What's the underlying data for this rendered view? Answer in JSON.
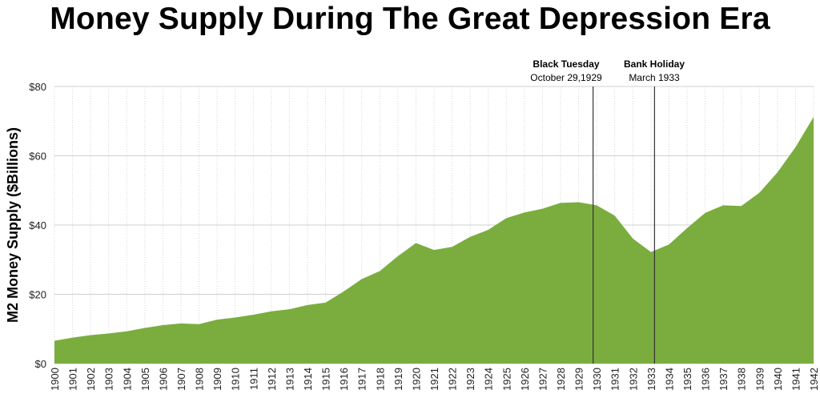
{
  "chart_data": {
    "type": "area",
    "title": "Money Supply During The Great Depression Era",
    "ylabel": "M2 Money Supply ($Billions)",
    "xlabel": "",
    "ylim": [
      0,
      80
    ],
    "yticks": [
      0,
      20,
      40,
      60,
      80
    ],
    "ytick_labels": [
      "$0",
      "$20",
      "$40",
      "$60",
      "$80"
    ],
    "grid": true,
    "x": [
      "1900",
      "1901",
      "1902",
      "1903",
      "1904",
      "1905",
      "1906",
      "1907",
      "1908",
      "1909",
      "1910",
      "1911",
      "1912",
      "1913",
      "1914",
      "1915",
      "1916",
      "1917",
      "1918",
      "1919",
      "1920",
      "1921",
      "1922",
      "1923",
      "1924",
      "1925",
      "1926",
      "1927",
      "1928",
      "1929",
      "1930",
      "1931",
      "1932",
      "1933",
      "1934",
      "1935",
      "1936",
      "1937",
      "1938",
      "1939",
      "1940",
      "1941",
      "1942"
    ],
    "values": [
      6.6,
      7.5,
      8.2,
      8.7,
      9.3,
      10.3,
      11.1,
      11.6,
      11.4,
      12.7,
      13.3,
      14.1,
      15.1,
      15.7,
      16.9,
      17.6,
      20.8,
      24.4,
      26.7,
      31.0,
      34.8,
      32.8,
      33.7,
      36.6,
      38.6,
      42.0,
      43.6,
      44.7,
      46.4,
      46.6,
      45.7,
      42.7,
      36.1,
      32.2,
      34.4,
      39.1,
      43.5,
      45.7,
      45.5,
      49.3,
      55.2,
      62.5,
      71.2
    ],
    "color": "#7aad3e",
    "annotations": [
      {
        "x": "1929.8",
        "title": "Black Tuesday",
        "subtitle": "October 29,1929"
      },
      {
        "x": "1933.2",
        "title": "Bank Holiday",
        "subtitle": "March 1933"
      }
    ]
  }
}
